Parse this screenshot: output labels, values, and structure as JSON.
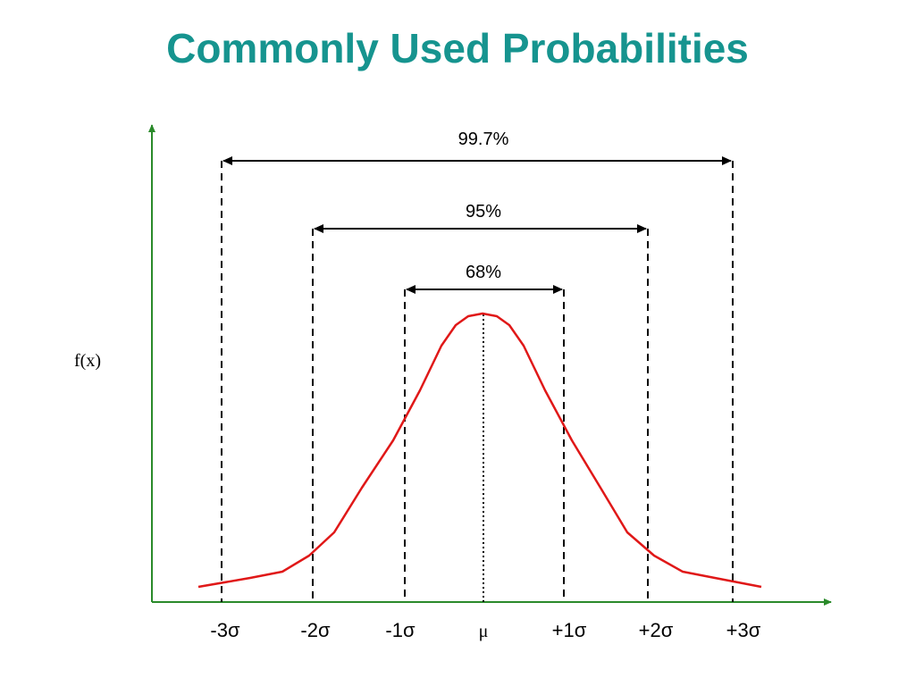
{
  "title": "Commonly Used Probabilities",
  "colors": {
    "title": "#16948f",
    "axes": "#2a8a2a",
    "curve": "#e01818",
    "lines": "#000000"
  },
  "y_axis_label": "f(x)",
  "x_ticks": [
    "-3σ",
    "-2σ",
    "-1σ",
    "μ",
    "+1σ",
    "+2σ",
    "+3σ"
  ],
  "intervals": [
    {
      "label": "99.7%",
      "from": "-3σ",
      "to": "+3σ"
    },
    {
      "label": "95%",
      "from": "-2σ",
      "to": "+2σ"
    },
    {
      "label": "68%",
      "from": "-1σ",
      "to": "+1σ"
    }
  ],
  "curve": {
    "type": "normal distribution",
    "center_marker": "dotted line at μ"
  }
}
